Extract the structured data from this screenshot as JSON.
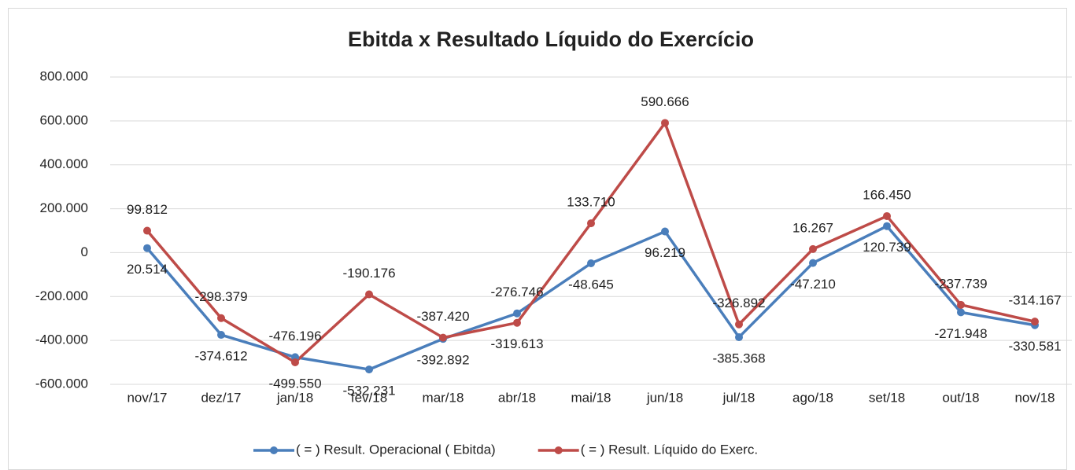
{
  "chart_data": {
    "type": "line",
    "title": "Ebitda x Resultado Líquido do Exercício",
    "categories": [
      "nov/17",
      "dez/17",
      "jan/18",
      "fev/18",
      "mar/18",
      "abr/18",
      "mai/18",
      "jun/18",
      "jul/18",
      "ago/18",
      "set/18",
      "out/18",
      "nov/18"
    ],
    "series": [
      {
        "name": "( = ) Result. Operacional ( Ebitda)",
        "color": "#4a7ebb",
        "values": [
          20514,
          -374612,
          -476196,
          -532231,
          -392892,
          -276746,
          -48645,
          96219,
          -385368,
          -47210,
          120739,
          -271948,
          -330581
        ],
        "value_labels": [
          "20.514",
          "-374.612",
          "-476.196",
          "-532.231",
          "-392.892",
          "-276.746",
          "-48.645",
          "96.219",
          "-385.368",
          "-47.210",
          "120.739",
          "-271.948",
          "-330.581"
        ]
      },
      {
        "name": "( = ) Result. Líquido do Exerc.",
        "color": "#be4b48",
        "values": [
          99812,
          -298379,
          -499550,
          -190176,
          -387420,
          -319613,
          133710,
          590666,
          -326892,
          16267,
          166450,
          -237739,
          -314167
        ],
        "value_labels": [
          "99.812",
          "-298.379",
          "-499.550",
          "-190.176",
          "-387.420",
          "-319.613",
          "133.710",
          "590.666",
          "-326.892",
          "16.267",
          "166.450",
          "-237.739",
          "-314.167"
        ]
      }
    ],
    "ylim": [
      -600000,
      800000
    ],
    "yticks": [
      {
        "value": -600000,
        "label": "-600.000"
      },
      {
        "value": -400000,
        "label": "-400.000"
      },
      {
        "value": -200000,
        "label": "-200.000"
      },
      0,
      {
        "value": 200000,
        "label": "200.000"
      },
      {
        "value": 400000,
        "label": "400.000"
      },
      {
        "value": 600000,
        "label": "600.000"
      },
      {
        "value": 800000,
        "label": "800.000"
      }
    ],
    "grid": true,
    "legend": "bottom"
  }
}
